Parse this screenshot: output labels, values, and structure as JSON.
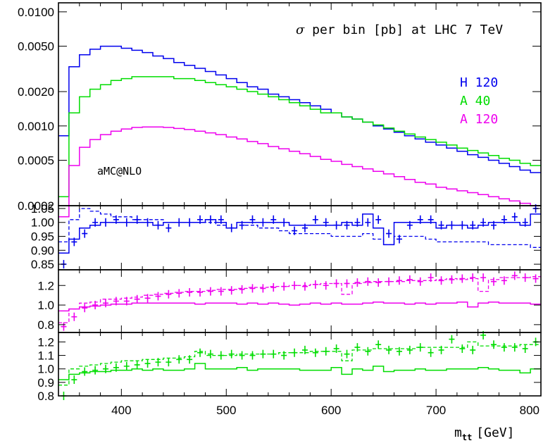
{
  "chart_data": {
    "type": "line",
    "title": "σ per bin [pb]  at LHC 7 TeV",
    "generator_label": "aMC@NLO",
    "xlabel": "m",
    "xlabel_sub": "tt",
    "xlabel_unit": "[GeV]",
    "xlim": [
      340,
      800
    ],
    "x_ticks": [
      400,
      500,
      600,
      700,
      800
    ],
    "x_tick_labels": [
      "400",
      "500",
      "600",
      "700",
      "800"
    ],
    "colors": {
      "H 120": "#0000ee",
      "A 40": "#00dd00",
      "A 120": "#ee00ee"
    },
    "main_panel": {
      "scale": "log",
      "ylim": [
        0.0002,
        0.012
      ],
      "y_ticks": [
        0.0002,
        0.0005,
        0.001,
        0.002,
        0.005,
        0.01
      ],
      "y_tick_labels": [
        "0.0002",
        "0.0005",
        "0.0010",
        "0.0020",
        "0.0050",
        "0.0100"
      ],
      "legend": [
        "H 120",
        "A 40",
        "A 120"
      ],
      "bin_edges": [
        340,
        350,
        360,
        370,
        380,
        390,
        400,
        410,
        420,
        430,
        440,
        450,
        460,
        470,
        480,
        490,
        500,
        510,
        520,
        530,
        540,
        550,
        560,
        570,
        580,
        590,
        600,
        610,
        620,
        630,
        640,
        650,
        660,
        670,
        680,
        690,
        700,
        710,
        720,
        730,
        740,
        750,
        760,
        770,
        780,
        790,
        800
      ],
      "series": [
        {
          "name": "H 120",
          "values": [
            0.00082,
            0.0033,
            0.0042,
            0.0047,
            0.005,
            0.005,
            0.0048,
            0.0046,
            0.0044,
            0.0041,
            0.0039,
            0.0036,
            0.0034,
            0.0032,
            0.003,
            0.0028,
            0.0026,
            0.0024,
            0.0022,
            0.0021,
            0.0019,
            0.0018,
            0.0017,
            0.0016,
            0.0015,
            0.0014,
            0.0013,
            0.0012,
            0.00115,
            0.00108,
            0.001,
            0.00094,
            0.00088,
            0.00082,
            0.00077,
            0.00072,
            0.00068,
            0.00064,
            0.0006,
            0.00056,
            0.00053,
            0.0005,
            0.00047,
            0.00044,
            0.00041,
            0.00039
          ]
        },
        {
          "name": "A 40",
          "values": [
            0.00024,
            0.0013,
            0.0018,
            0.0021,
            0.0023,
            0.0025,
            0.0026,
            0.0027,
            0.0027,
            0.0027,
            0.0027,
            0.0026,
            0.0026,
            0.0025,
            0.0024,
            0.0023,
            0.0022,
            0.0021,
            0.002,
            0.0019,
            0.0018,
            0.0017,
            0.0016,
            0.0015,
            0.0014,
            0.0013,
            0.0013,
            0.0012,
            0.00115,
            0.00108,
            0.00102,
            0.00096,
            0.0009,
            0.00085,
            0.0008,
            0.00076,
            0.00072,
            0.00068,
            0.00064,
            0.00061,
            0.00058,
            0.00055,
            0.00052,
            0.0005,
            0.00047,
            0.00045
          ]
        },
        {
          "name": "A 120",
          "values": [
            0.00016,
            0.00045,
            0.00065,
            0.00076,
            0.00084,
            0.0009,
            0.00094,
            0.00097,
            0.00098,
            0.00098,
            0.00097,
            0.00095,
            0.00093,
            0.0009,
            0.00087,
            0.00084,
            0.0008,
            0.00077,
            0.00073,
            0.0007,
            0.00066,
            0.00063,
            0.0006,
            0.00057,
            0.00054,
            0.00051,
            0.00049,
            0.00046,
            0.00044,
            0.00042,
            0.0004,
            0.00038,
            0.00036,
            0.00034,
            0.00032,
            0.00031,
            0.00029,
            0.00028,
            0.00027,
            0.00026,
            0.00025,
            0.00024,
            0.00023,
            0.00022,
            0.00021,
            0.0002
          ]
        }
      ]
    },
    "ratio_panels": [
      {
        "series": "H 120",
        "ylim": [
          0.83,
          1.06
        ],
        "y_ticks": [
          0.85,
          0.9,
          0.95,
          1.0,
          1.05
        ],
        "y_tick_labels": [
          "0.85",
          "0.90",
          "0.95",
          "1.00",
          "1.05"
        ],
        "bin_edges": [
          340,
          350,
          360,
          370,
          380,
          390,
          400,
          410,
          420,
          430,
          440,
          450,
          460,
          470,
          480,
          490,
          500,
          510,
          520,
          530,
          540,
          550,
          560,
          570,
          580,
          590,
          600,
          610,
          620,
          630,
          640,
          650,
          660,
          670,
          680,
          690,
          700,
          710,
          720,
          730,
          740,
          750,
          760,
          770,
          780,
          790,
          800
        ],
        "solid": [
          0.89,
          0.94,
          0.98,
          0.99,
          1.0,
          1.0,
          1.0,
          1.0,
          1.0,
          0.99,
          1.0,
          1.0,
          1.0,
          1.0,
          1.01,
          1.0,
          0.98,
          1.0,
          1.0,
          1.0,
          1.0,
          1.0,
          0.99,
          0.99,
          0.99,
          0.99,
          0.99,
          1.0,
          0.99,
          1.03,
          0.98,
          0.92,
          1.0,
          1.0,
          1.0,
          1.0,
          0.98,
          0.99,
          0.99,
          0.98,
          0.99,
          1.0,
          1.0,
          1.0,
          0.99,
          1.03
        ],
        "dashed": [
          0.93,
          1.01,
          1.05,
          1.04,
          1.03,
          1.02,
          1.02,
          1.01,
          1.01,
          1.01,
          1.0,
          1.0,
          1.0,
          1.0,
          1.0,
          0.99,
          0.98,
          0.99,
          0.99,
          0.98,
          0.98,
          0.97,
          0.96,
          0.96,
          0.96,
          0.96,
          0.95,
          0.95,
          0.95,
          0.96,
          0.94,
          0.92,
          0.95,
          0.95,
          0.95,
          0.94,
          0.93,
          0.93,
          0.93,
          0.93,
          0.93,
          0.92,
          0.92,
          0.92,
          0.92,
          0.91
        ],
        "points": [
          0.85,
          0.93,
          0.96,
          1.0,
          1.0,
          1.01,
          1.0,
          1.01,
          1.0,
          0.99,
          0.98,
          1.0,
          1.0,
          1.01,
          1.01,
          1.01,
          0.98,
          0.99,
          1.01,
          1.0,
          1.01,
          1.0,
          0.97,
          0.98,
          1.01,
          1.0,
          0.99,
          0.99,
          1.0,
          1.0,
          1.01,
          0.96,
          0.94,
          0.99,
          1.01,
          1.01,
          0.99,
          0.99,
          0.99,
          0.99,
          1.0,
          0.99,
          1.01,
          1.02,
          1.0,
          1.05
        ]
      },
      {
        "series": "A 120",
        "ylim": [
          0.72,
          1.36
        ],
        "y_ticks": [
          0.8,
          1.0,
          1.2
        ],
        "y_tick_labels": [
          "0.8",
          "1.0",
          "1.2"
        ],
        "bin_edges": [
          340,
          350,
          360,
          370,
          380,
          390,
          400,
          410,
          420,
          430,
          440,
          450,
          460,
          470,
          480,
          490,
          500,
          510,
          520,
          530,
          540,
          550,
          560,
          570,
          580,
          590,
          600,
          610,
          620,
          630,
          640,
          650,
          660,
          670,
          680,
          690,
          700,
          710,
          720,
          730,
          740,
          750,
          760,
          770,
          780,
          790,
          800
        ],
        "solid": [
          0.94,
          0.96,
          0.98,
          0.99,
          1.0,
          1.01,
          1.01,
          1.02,
          1.02,
          1.02,
          1.02,
          1.02,
          1.02,
          1.01,
          1.02,
          1.02,
          1.02,
          1.01,
          1.02,
          1.01,
          1.02,
          1.01,
          1.0,
          1.01,
          1.02,
          1.01,
          1.02,
          1.01,
          1.01,
          1.02,
          1.03,
          1.02,
          1.02,
          1.01,
          1.02,
          1.01,
          1.02,
          1.02,
          1.03,
          0.98,
          1.02,
          1.03,
          1.02,
          1.02,
          1.02,
          1.01
        ],
        "dashed": [
          0.82,
          0.96,
          1.02,
          1.03,
          1.06,
          1.06,
          1.07,
          1.08,
          1.1,
          1.11,
          1.12,
          1.13,
          1.14,
          1.14,
          1.15,
          1.16,
          1.16,
          1.17,
          1.18,
          1.18,
          1.19,
          1.19,
          1.2,
          1.2,
          1.21,
          1.22,
          1.22,
          1.11,
          1.22,
          1.23,
          1.24,
          1.24,
          1.24,
          1.25,
          1.25,
          1.25,
          1.26,
          1.27,
          1.26,
          1.27,
          1.14,
          1.26,
          1.28,
          1.28,
          1.28,
          1.29
        ],
        "points": [
          0.78,
          0.88,
          0.97,
          1.0,
          1.02,
          1.04,
          1.04,
          1.06,
          1.07,
          1.09,
          1.11,
          1.12,
          1.13,
          1.13,
          1.14,
          1.14,
          1.15,
          1.16,
          1.17,
          1.17,
          1.18,
          1.19,
          1.2,
          1.19,
          1.21,
          1.2,
          1.22,
          1.22,
          1.23,
          1.24,
          1.23,
          1.24,
          1.25,
          1.26,
          1.24,
          1.28,
          1.25,
          1.26,
          1.27,
          1.28,
          1.28,
          1.24,
          1.25,
          1.3,
          1.28,
          1.27
        ]
      },
      {
        "series": "A 40",
        "ylim": [
          0.8,
          1.27
        ],
        "y_ticks": [
          0.8,
          0.9,
          1.0,
          1.1,
          1.2
        ],
        "y_tick_labels": [
          "0.8",
          "0.9",
          "1.0",
          "1.1",
          "1.2"
        ],
        "bin_edges": [
          340,
          350,
          360,
          370,
          380,
          390,
          400,
          410,
          420,
          430,
          440,
          450,
          460,
          470,
          480,
          490,
          500,
          510,
          520,
          530,
          540,
          550,
          560,
          570,
          580,
          590,
          600,
          610,
          620,
          630,
          640,
          650,
          660,
          670,
          680,
          690,
          700,
          710,
          720,
          730,
          740,
          750,
          760,
          770,
          780,
          790,
          800
        ],
        "solid": [
          0.92,
          0.96,
          0.97,
          0.98,
          0.98,
          0.99,
          0.99,
          1.0,
          0.99,
          1.0,
          0.99,
          0.99,
          1.0,
          1.04,
          1.0,
          1.0,
          1.0,
          1.01,
          0.99,
          1.0,
          1.0,
          1.0,
          1.0,
          0.99,
          0.99,
          0.99,
          1.01,
          0.96,
          1.0,
          0.99,
          1.02,
          0.98,
          0.99,
          0.99,
          1.0,
          0.99,
          0.99,
          1.0,
          1.0,
          1.0,
          1.01,
          1.0,
          0.99,
          0.99,
          0.97,
          1.0
        ],
        "dashed": [
          0.88,
          1.0,
          1.02,
          1.03,
          1.04,
          1.05,
          1.06,
          1.06,
          1.07,
          1.07,
          1.08,
          1.08,
          1.09,
          1.13,
          1.1,
          1.1,
          1.1,
          1.11,
          1.11,
          1.11,
          1.11,
          1.12,
          1.12,
          1.12,
          1.13,
          1.13,
          1.13,
          1.06,
          1.14,
          1.14,
          1.15,
          1.15,
          1.15,
          1.15,
          1.16,
          1.16,
          1.16,
          1.16,
          1.16,
          1.2,
          1.17,
          1.17,
          1.17,
          1.17,
          1.18,
          1.18
        ],
        "points": [
          0.8,
          0.92,
          0.98,
          0.99,
          1.0,
          1.01,
          1.02,
          1.03,
          1.04,
          1.05,
          1.05,
          1.07,
          1.07,
          1.12,
          1.11,
          1.1,
          1.11,
          1.1,
          1.1,
          1.11,
          1.11,
          1.1,
          1.12,
          1.14,
          1.12,
          1.13,
          1.15,
          1.11,
          1.16,
          1.13,
          1.18,
          1.14,
          1.13,
          1.14,
          1.16,
          1.12,
          1.14,
          1.22,
          1.15,
          1.14,
          1.25,
          1.18,
          1.16,
          1.16,
          1.15,
          1.2
        ]
      }
    ]
  }
}
